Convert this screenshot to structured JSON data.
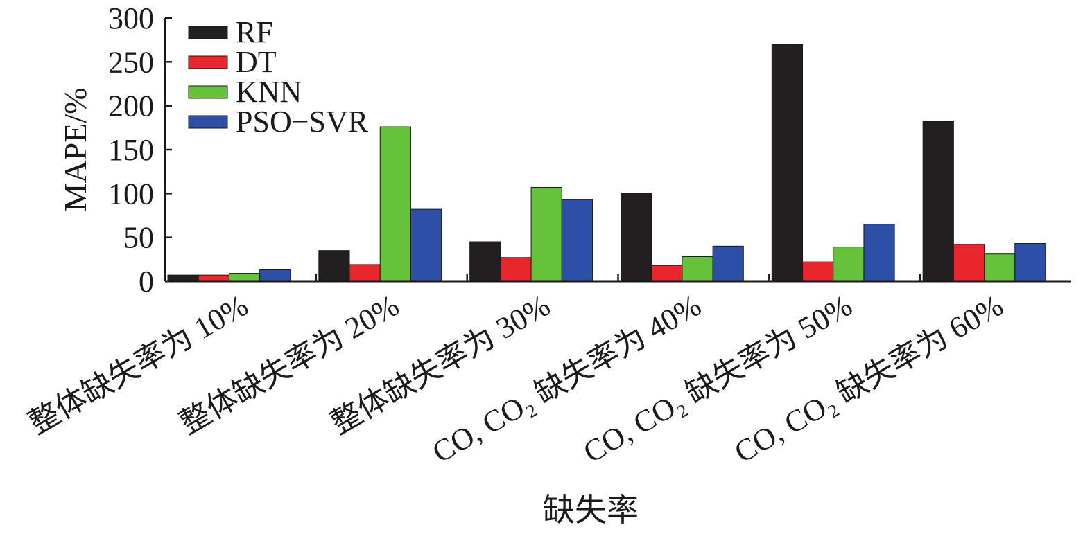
{
  "chart_data": {
    "type": "bar",
    "categories": [
      "整体缺失率为 10%",
      "整体缺失率为 20%",
      "整体缺失率为 30%",
      "CO, CO₂ 缺失率为 40%",
      "CO, CO₂ 缺失率为 50%",
      "CO, CO₂ 缺失率为 60%"
    ],
    "series": [
      {
        "name": "RF",
        "color": "#231f20",
        "values": [
          7,
          35,
          45,
          100,
          270,
          182
        ]
      },
      {
        "name": "DT",
        "color": "#e8262b",
        "values": [
          7,
          19,
          27,
          18,
          22,
          42
        ]
      },
      {
        "name": "KNN",
        "color": "#66c23a",
        "values": [
          9,
          176,
          107,
          28,
          39,
          31
        ]
      },
      {
        "name": "PSO−SVR",
        "color": "#2e4fa8",
        "values": [
          13,
          82,
          93,
          40,
          65,
          43
        ]
      }
    ],
    "title": "",
    "xlabel": "缺失率",
    "ylabel": "MAPE/%",
    "ylim": [
      0,
      300
    ],
    "yticks": [
      0,
      50,
      100,
      150,
      200,
      250,
      300
    ],
    "grid": false,
    "legend_position": "top-left"
  }
}
